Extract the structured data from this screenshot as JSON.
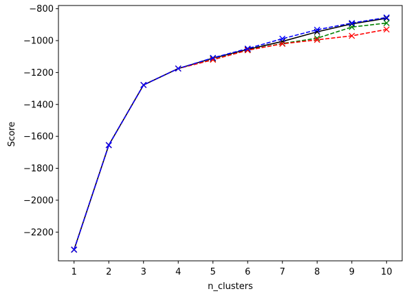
{
  "chart_data": {
    "type": "line",
    "title": "",
    "xlabel": "n_clusters",
    "ylabel": "Score",
    "x": [
      1,
      2,
      3,
      4,
      5,
      6,
      7,
      8,
      9,
      10
    ],
    "xlim": [
      0.55,
      10.45
    ],
    "ylim": [
      -2380,
      -780
    ],
    "xticks": [
      1,
      2,
      3,
      4,
      5,
      6,
      7,
      8,
      9,
      10
    ],
    "yticks": [
      -2200,
      -2000,
      -1800,
      -1600,
      -1400,
      -1200,
      -1000,
      -800
    ],
    "ytick_labels": [
      "−2200",
      "−2000",
      "−1800",
      "−1600",
      "−1400",
      "−1200",
      "−1000",
      "−800"
    ],
    "grid": false,
    "legend": "none",
    "series": [
      {
        "color": "#000000",
        "line_style": "solid",
        "marker": "x",
        "values": [
          -2310,
          -1655,
          -1278,
          -1175,
          -1110,
          -1055,
          -1005,
          -945,
          -895,
          -860
        ]
      },
      {
        "color": "#008000",
        "line_style": "dashed",
        "marker": "x",
        "values": [
          -2310,
          -1655,
          -1278,
          -1175,
          -1118,
          -1060,
          -1018,
          -985,
          -915,
          -890
        ]
      },
      {
        "color": "#ff0000",
        "line_style": "dashed",
        "marker": "x",
        "values": [
          -2310,
          -1655,
          -1278,
          -1175,
          -1120,
          -1060,
          -1020,
          -995,
          -970,
          -930
        ]
      },
      {
        "color": "#0000ff",
        "line_style": "dashed",
        "marker": "x",
        "values": [
          -2310,
          -1655,
          -1278,
          -1175,
          -1108,
          -1050,
          -988,
          -932,
          -890,
          -855
        ]
      }
    ]
  }
}
